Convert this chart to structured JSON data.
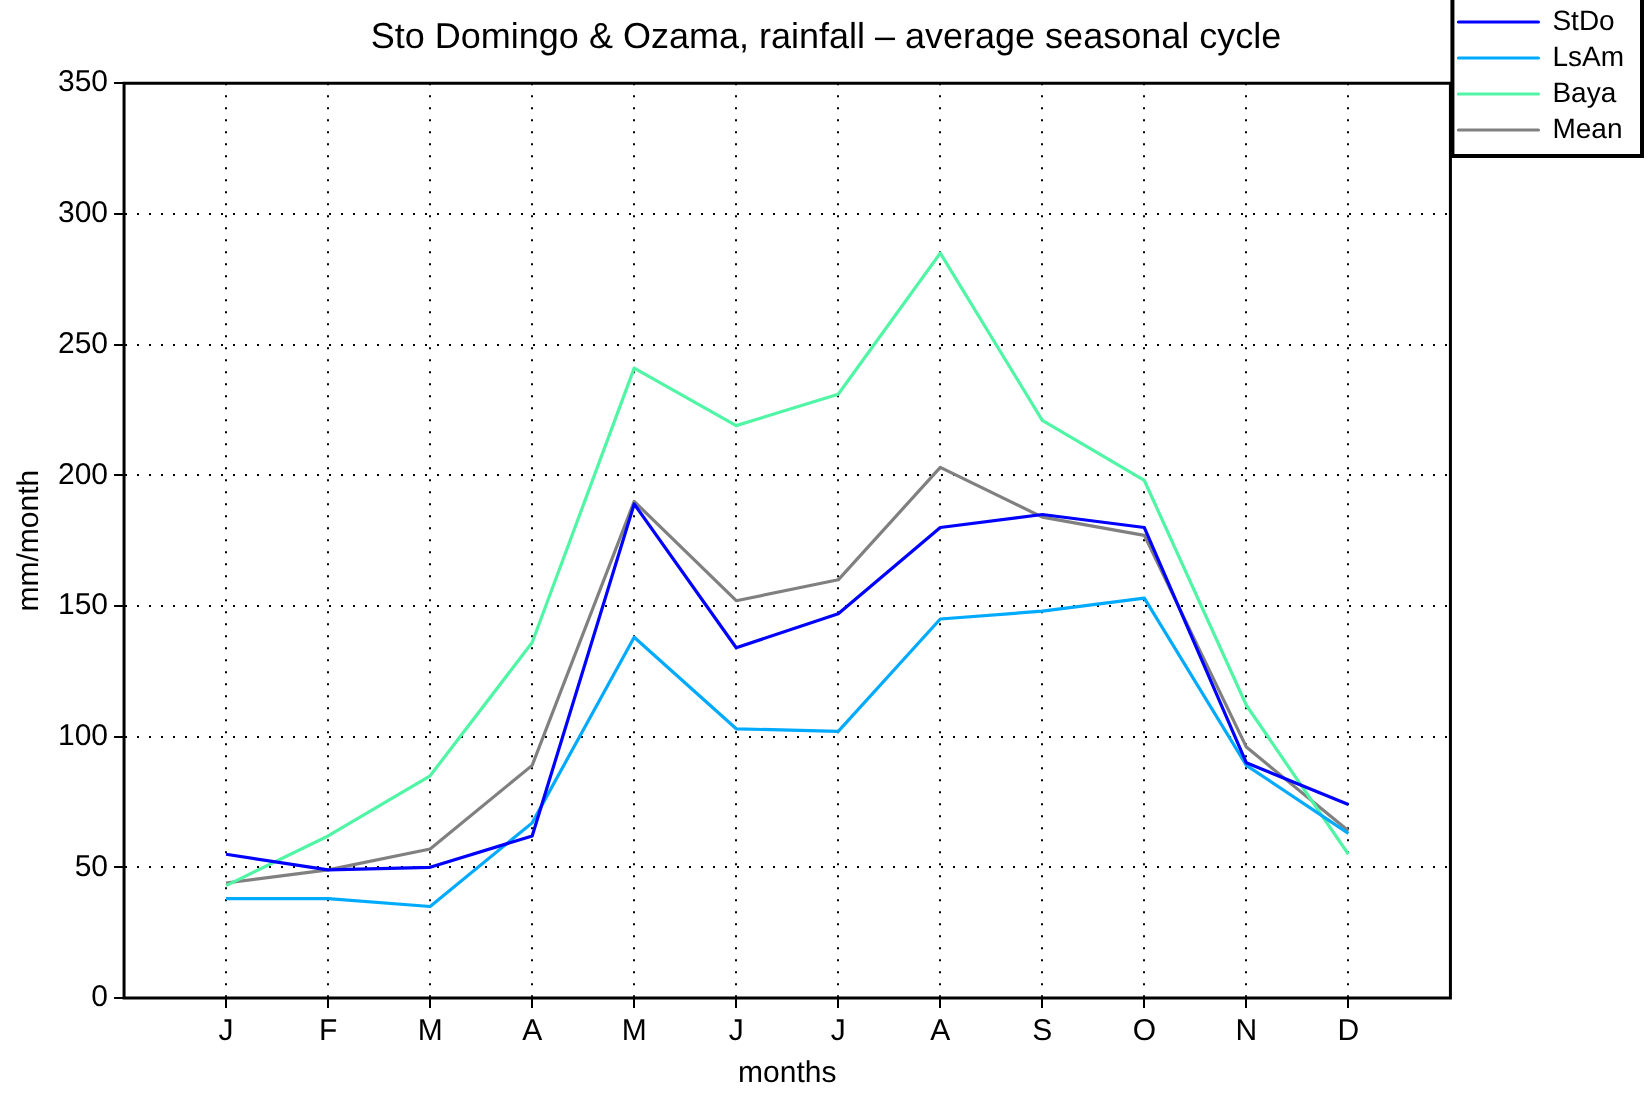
{
  "chart_data": {
    "type": "line",
    "title": "Sto Domingo & Ozama, rainfall – average seasonal cycle",
    "xlabel": "months",
    "ylabel": "mm/month",
    "categories": [
      "J",
      "F",
      "M",
      "A",
      "M",
      "J",
      "J",
      "A",
      "S",
      "O",
      "N",
      "D"
    ],
    "series": [
      {
        "name": "StDo",
        "color": "#0000ff",
        "values": [
          55,
          49,
          50,
          62,
          189,
          134,
          147,
          180,
          185,
          180,
          90,
          74
        ]
      },
      {
        "name": "LsAm",
        "color": "#00aaff",
        "values": [
          38,
          38,
          35,
          67,
          138,
          103,
          102,
          145,
          148,
          153,
          89,
          63
        ]
      },
      {
        "name": "Baya",
        "color": "#50f5a5",
        "values": [
          43,
          62,
          85,
          136,
          241,
          219,
          231,
          285,
          221,
          198,
          112,
          55
        ]
      },
      {
        "name": "Mean",
        "color": "#808080",
        "values": [
          44,
          49,
          57,
          89,
          190,
          152,
          160,
          203,
          184,
          177,
          96,
          64
        ]
      }
    ],
    "ylim": [
      0,
      350
    ],
    "yticks": [
      0,
      50,
      100,
      150,
      200,
      250,
      300,
      350
    ],
    "grid": true,
    "legend": "top right",
    "marker": "none",
    "line_style": "solid"
  }
}
